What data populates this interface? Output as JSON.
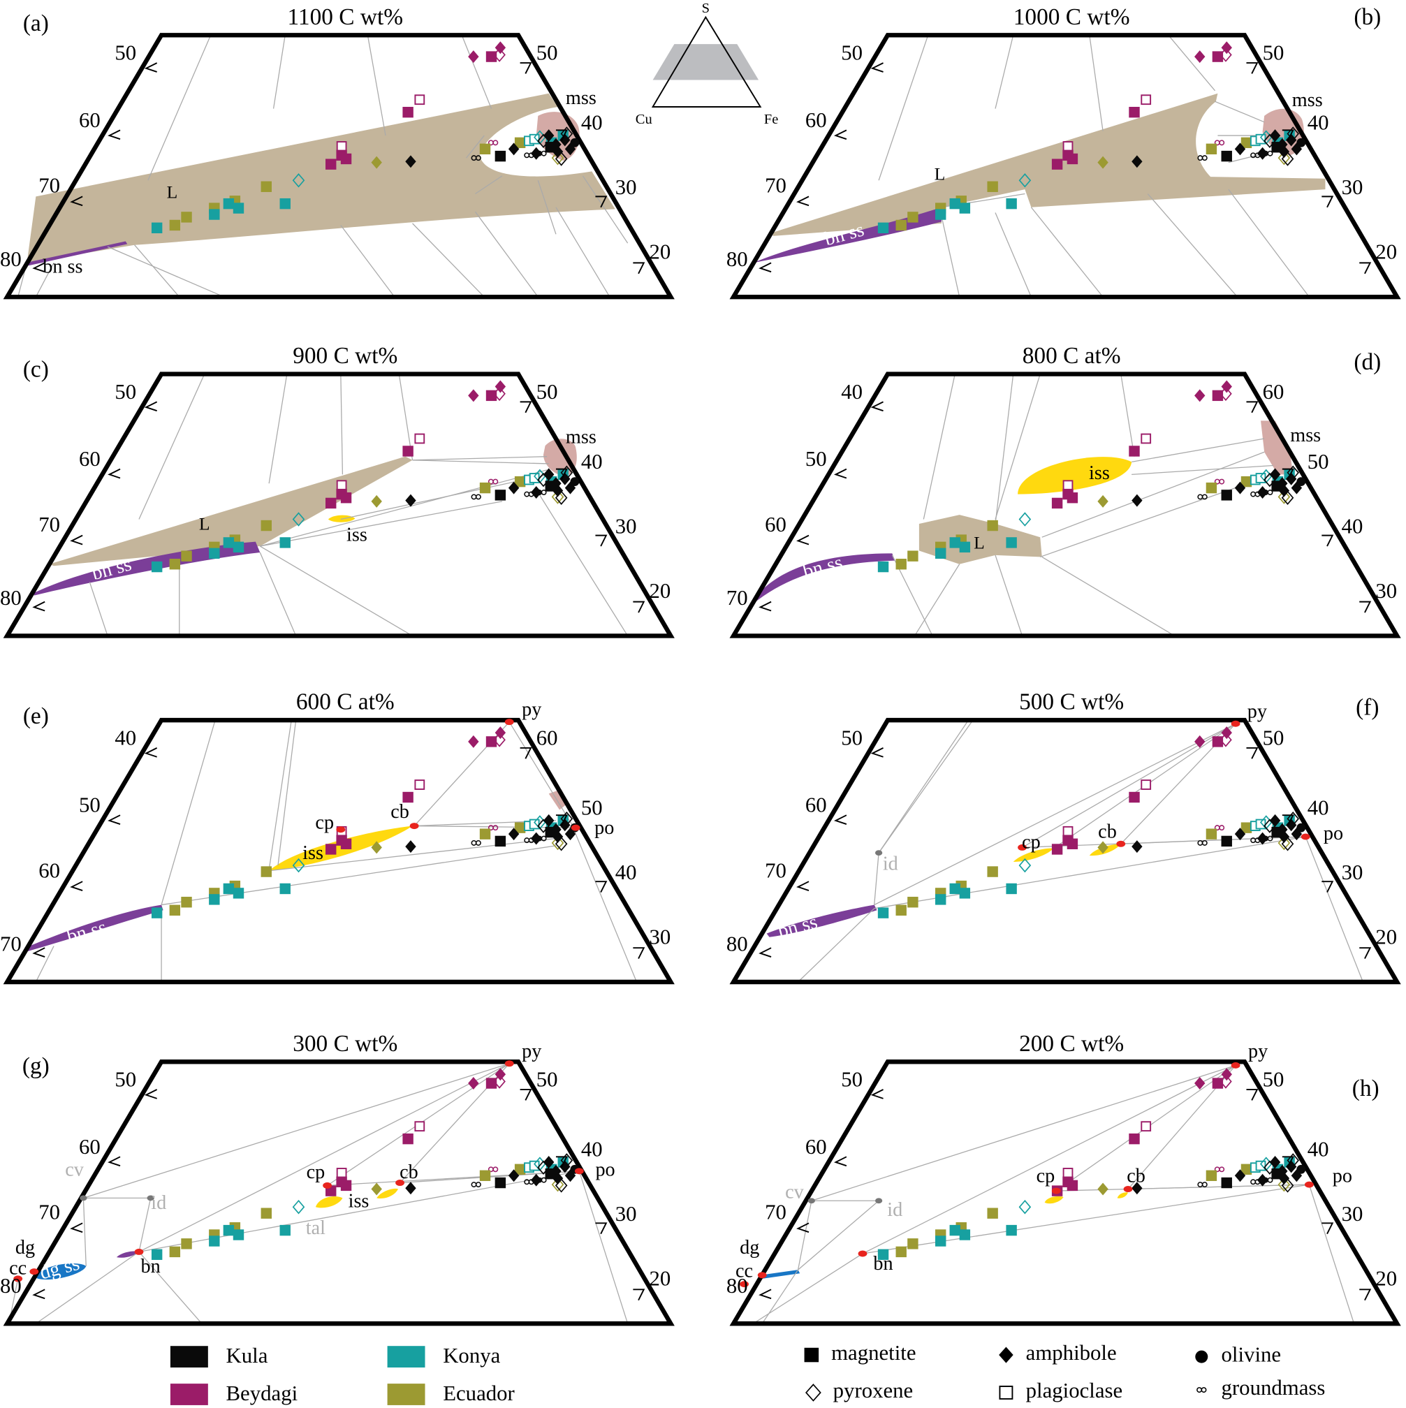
{
  "inset": {
    "apex_top": "S",
    "apex_left": "Cu",
    "apex_right": "Fe"
  },
  "panels": [
    {
      "letter": "(a)",
      "title": "1100 C wt%",
      "left_ticks": [
        "50",
        "60",
        "70",
        "80"
      ],
      "right_ticks": [
        "50",
        "40",
        "30",
        "20"
      ],
      "labels": [
        "mss",
        "L",
        "bn ss"
      ]
    },
    {
      "letter": "(b)",
      "title": "1000 C wt%",
      "left_ticks": [
        "50",
        "60",
        "70",
        "80"
      ],
      "right_ticks": [
        "50",
        "40",
        "30",
        "20"
      ],
      "labels": [
        "mss",
        "L",
        "bn ss"
      ]
    },
    {
      "letter": "(c)",
      "title": "900 C wt%",
      "left_ticks": [
        "50",
        "60",
        "70",
        "80"
      ],
      "right_ticks": [
        "50",
        "40",
        "30",
        "20"
      ],
      "labels": [
        "mss",
        "L",
        "bn ss",
        "iss"
      ]
    },
    {
      "letter": "(d)",
      "title": "800 C at%",
      "left_ticks": [
        "40",
        "50",
        "60",
        "70"
      ],
      "right_ticks": [
        "60",
        "50",
        "40",
        "30"
      ],
      "labels": [
        "mss",
        "iss",
        "L",
        "bn ss"
      ]
    },
    {
      "letter": "(e)",
      "title": "600 C at%",
      "left_ticks": [
        "40",
        "50",
        "60",
        "70"
      ],
      "right_ticks": [
        "60",
        "50",
        "40",
        "30"
      ],
      "labels": [
        "py",
        "cp",
        "cb",
        "iss",
        "po",
        "bn ss"
      ]
    },
    {
      "letter": "(f)",
      "title": "500 C wt%",
      "left_ticks": [
        "50",
        "60",
        "70",
        "80"
      ],
      "right_ticks": [
        "50",
        "40",
        "30",
        "20"
      ],
      "labels": [
        "py",
        "cp",
        "cb",
        "po",
        "id",
        "bn ss"
      ]
    },
    {
      "letter": "(g)",
      "title": "300 C wt%",
      "left_ticks": [
        "50",
        "60",
        "70",
        "80"
      ],
      "right_ticks": [
        "50",
        "40",
        "30",
        "20"
      ],
      "labels": [
        "py",
        "cv",
        "id",
        "dg",
        "cc",
        "dg ss",
        "bn",
        "cp",
        "cb",
        "iss",
        "tal",
        "po"
      ]
    },
    {
      "letter": "(h)",
      "title": "200 C wt%",
      "left_ticks": [
        "50",
        "60",
        "70",
        "80"
      ],
      "right_ticks": [
        "50",
        "40",
        "30",
        "20"
      ],
      "labels": [
        "py",
        "cv",
        "id",
        "dg",
        "cc",
        "bn",
        "cp",
        "cb",
        "po"
      ]
    }
  ],
  "legend": {
    "localities": [
      {
        "name": "Kula",
        "color": "#0a0a0a"
      },
      {
        "name": "Beydagi",
        "color": "#9b1c68"
      },
      {
        "name": "Konya",
        "color": "#17a0a0"
      },
      {
        "name": "Ecuador",
        "color": "#9c9a32"
      }
    ],
    "minerals": [
      {
        "name": "magnetite",
        "symbol": "filled-square"
      },
      {
        "name": "amphibole",
        "symbol": "filled-diamond"
      },
      {
        "name": "olivine",
        "symbol": "filled-circle"
      },
      {
        "name": "pyroxene",
        "symbol": "open-diamond"
      },
      {
        "name": "plagioclase",
        "symbol": "open-square"
      },
      {
        "name": "groundmass",
        "symbol": "infinity"
      }
    ]
  },
  "colors": {
    "liquid": "#c4b59b",
    "mss": "#d4aaa6",
    "bornite_ss": "#7b3e98",
    "iss": "#ffd90f",
    "digenite_ss": "#1876c5",
    "sulfide_point": "#e8241e",
    "tie_line": "#aaaaaa",
    "gray_label": "#b0b0b0"
  }
}
